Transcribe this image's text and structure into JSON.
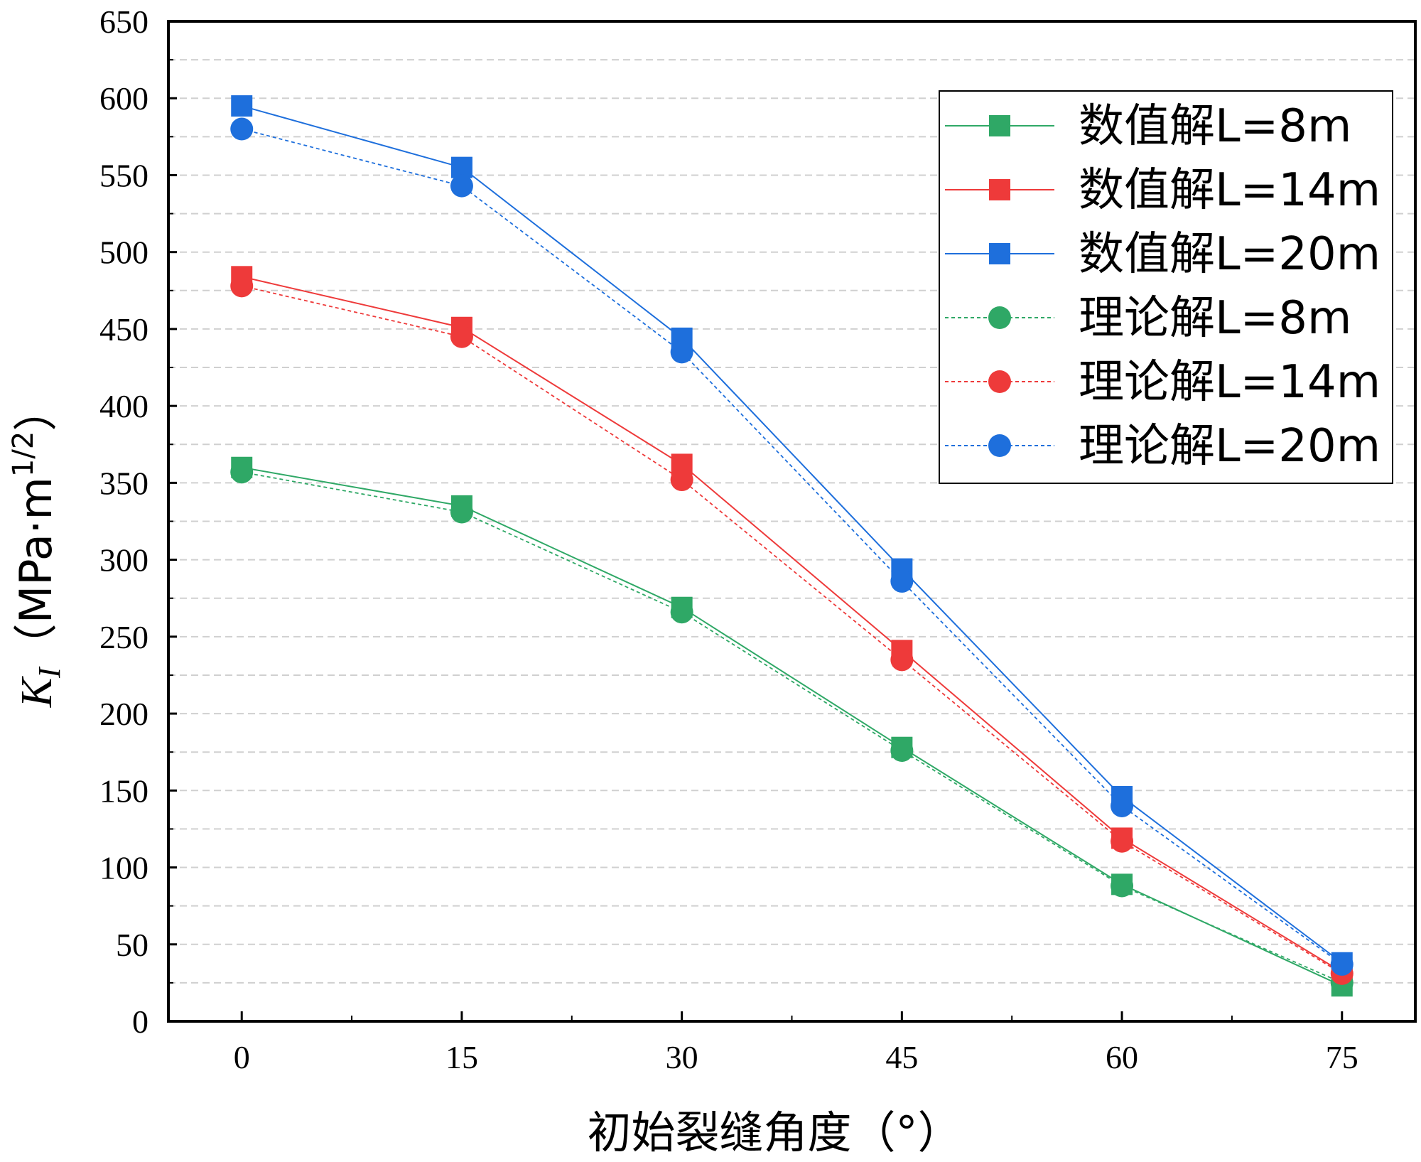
{
  "chart_data": {
    "type": "line",
    "xlabel": "初始裂缝角度（°）",
    "ylabel": {
      "symbol": "K",
      "subscript": "I",
      "unit_open": "（MPa·m",
      "unit_sup": "1/2",
      "unit_close": "）"
    },
    "x": [
      0,
      15,
      30,
      45,
      60,
      75
    ],
    "xlim": [
      -5,
      80
    ],
    "ylim": [
      0,
      650
    ],
    "xticks": [
      0,
      15,
      30,
      45,
      60,
      75
    ],
    "yticks": [
      0,
      50,
      100,
      150,
      200,
      250,
      300,
      350,
      400,
      450,
      500,
      550,
      600,
      650
    ],
    "grid": "horizontal dashed",
    "legend_position": "top-right",
    "series": [
      {
        "name": "数值解L=8m",
        "marker": "square",
        "line": "solid",
        "color": "#2fa866",
        "values": [
          360,
          335,
          269,
          178,
          89,
          23
        ]
      },
      {
        "name": "数值解L=14m",
        "marker": "square",
        "line": "solid",
        "color": "#ee3a3a",
        "values": [
          484,
          451,
          362,
          241,
          119,
          32
        ]
      },
      {
        "name": "数值解L=20m",
        "marker": "square",
        "line": "solid",
        "color": "#1e6fdc",
        "values": [
          595,
          555,
          444,
          294,
          146,
          38
        ]
      },
      {
        "name": "理论解L=8m",
        "marker": "circle",
        "line": "dotted",
        "color": "#2fa866",
        "values": [
          357,
          331,
          266,
          176,
          88,
          25
        ]
      },
      {
        "name": "理论解L=14m",
        "marker": "circle",
        "line": "dotted",
        "color": "#ee3a3a",
        "values": [
          478,
          445,
          352,
          235,
          117,
          31
        ]
      },
      {
        "name": "理论解L=20m",
        "marker": "circle",
        "line": "dotted",
        "color": "#1e6fdc",
        "values": [
          580,
          543,
          435,
          286,
          140,
          37
        ]
      }
    ]
  }
}
